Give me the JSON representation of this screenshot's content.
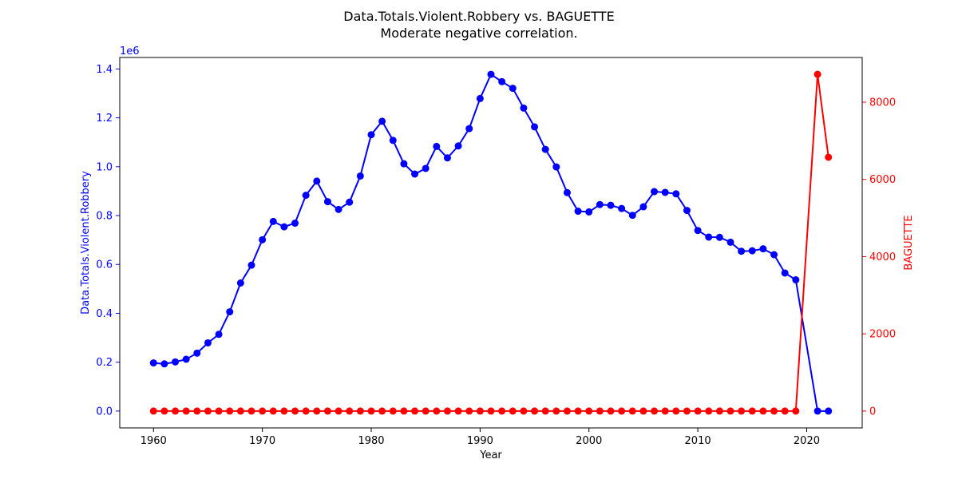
{
  "chart_data": {
    "type": "line",
    "title": "Data.Totals.Violent.Robbery vs. BAGUETTE",
    "subtitle": "Moderate negative correlation.",
    "xlabel": "Year",
    "ylabel_left": "Data.Totals.Violent.Robbery",
    "ylabel_right": "BAGUETTE",
    "left_scale_label": "1e6",
    "xlim": [
      1956.9,
      2025.1
    ],
    "ylim_left": [
      -0.069,
      1.447
    ],
    "ylim_right": [
      -436,
      9158
    ],
    "x_ticks": [
      1960,
      1970,
      1980,
      1990,
      2000,
      2010,
      2020
    ],
    "y_ticks_left": [
      0.0,
      0.2,
      0.4,
      0.6,
      0.8,
      1.0,
      1.2,
      1.4
    ],
    "y_ticks_left_labels": [
      "0.0",
      "0.2",
      "0.4",
      "0.6",
      "0.8",
      "1.0",
      "1.2",
      "1.4"
    ],
    "y_ticks_right": [
      0,
      2000,
      4000,
      6000,
      8000
    ],
    "y_ticks_right_labels": [
      "0",
      "2000",
      "4000",
      "6000",
      "8000"
    ],
    "grid": false,
    "colors": {
      "left": "#0000ff",
      "right": "#ff0000",
      "axis": "#000000"
    },
    "series": [
      {
        "axis": "left",
        "x": [
          1960,
          1961,
          1962,
          1963,
          1964,
          1965,
          1966,
          1967,
          1968,
          1969,
          1970,
          1971,
          1972,
          1973,
          1974,
          1975,
          1976,
          1977,
          1978,
          1979,
          1980,
          1981,
          1982,
          1983,
          1984,
          1985,
          1986,
          1987,
          1988,
          1989,
          1990,
          1991,
          1992,
          1993,
          1994,
          1995,
          1996,
          1997,
          1998,
          1999,
          2000,
          2001,
          2002,
          2003,
          2004,
          2005,
          2006,
          2007,
          2008,
          2009,
          2010,
          2011,
          2012,
          2013,
          2014,
          2015,
          2016,
          2017,
          2018,
          2019,
          2021,
          2022
        ],
        "values": [
          0.197,
          0.193,
          0.201,
          0.212,
          0.237,
          0.279,
          0.314,
          0.406,
          0.524,
          0.597,
          0.701,
          0.776,
          0.754,
          0.769,
          0.883,
          0.941,
          0.857,
          0.825,
          0.855,
          0.962,
          1.131,
          1.186,
          1.108,
          1.012,
          0.97,
          0.993,
          1.083,
          1.036,
          1.085,
          1.156,
          1.279,
          1.378,
          1.348,
          1.321,
          1.24,
          1.163,
          1.071,
          0.999,
          0.894,
          0.818,
          0.815,
          0.845,
          0.842,
          0.829,
          0.801,
          0.836,
          0.898,
          0.895,
          0.889,
          0.821,
          0.739,
          0.712,
          0.711,
          0.691,
          0.654,
          0.656,
          0.664,
          0.64,
          0.565,
          0.537,
          0.0,
          0.0
        ]
      },
      {
        "axis": "right",
        "x": [
          1960,
          1961,
          1962,
          1963,
          1964,
          1965,
          1966,
          1967,
          1968,
          1969,
          1970,
          1971,
          1972,
          1973,
          1974,
          1975,
          1976,
          1977,
          1978,
          1979,
          1980,
          1981,
          1982,
          1983,
          1984,
          1985,
          1986,
          1987,
          1988,
          1989,
          1990,
          1991,
          1992,
          1993,
          1994,
          1995,
          1996,
          1997,
          1998,
          1999,
          2000,
          2001,
          2002,
          2003,
          2004,
          2005,
          2006,
          2007,
          2008,
          2009,
          2010,
          2011,
          2012,
          2013,
          2014,
          2015,
          2016,
          2017,
          2018,
          2019,
          2021,
          2022
        ],
        "values": [
          0,
          0,
          0,
          0,
          0,
          0,
          0,
          0,
          0,
          0,
          0,
          0,
          0,
          0,
          0,
          0,
          0,
          0,
          0,
          0,
          0,
          0,
          0,
          0,
          0,
          0,
          0,
          0,
          0,
          0,
          0,
          0,
          0,
          0,
          0,
          0,
          0,
          0,
          0,
          0,
          0,
          0,
          0,
          0,
          0,
          0,
          0,
          0,
          0,
          0,
          0,
          0,
          0,
          0,
          0,
          0,
          0,
          0,
          0,
          0,
          8722,
          6574
        ]
      }
    ]
  }
}
